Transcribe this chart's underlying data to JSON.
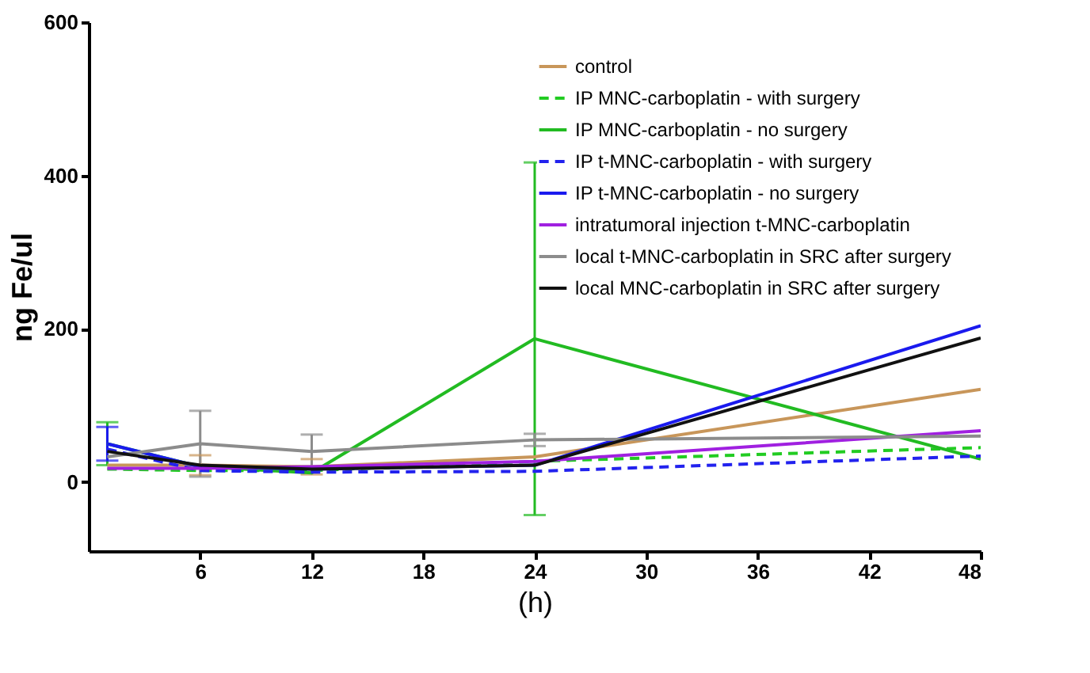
{
  "chart_data": {
    "type": "line",
    "xlabel": "(h)",
    "ylabel": "ng Fe/ul",
    "x": [
      1,
      6,
      12,
      24,
      48
    ],
    "xlim": [
      0,
      48
    ],
    "xticks": [
      6,
      12,
      18,
      24,
      30,
      36,
      42,
      48
    ],
    "ylim": [
      -90,
      600
    ],
    "yticks": [
      0,
      200,
      400,
      600
    ],
    "grid": false,
    "legend": "top right",
    "marker": "none",
    "series": [
      {
        "name": "control",
        "color": "#c8965a",
        "line_style": "solid",
        "values": [
          22,
          22,
          20,
          33,
          121
        ],
        "errors": [
          null,
          13,
          10,
          null,
          null
        ]
      },
      {
        "name": "IP MNC-carboplatin - with surgery",
        "color": "#22cc22",
        "line_style": "dashed",
        "values": [
          17,
          15,
          15,
          27,
          45
        ]
      },
      {
        "name": "IP MNC-carboplatin - no surgery",
        "color": "#22bb22",
        "line_style": "solid",
        "values": [
          50,
          20,
          12,
          187,
          30
        ],
        "errors": [
          28,
          null,
          null,
          230,
          null
        ]
      },
      {
        "name": "IP t-MNC-carboplatin - with surgery",
        "color": "#2222ee",
        "line_style": "dashed",
        "values": [
          43,
          15,
          13,
          14,
          34
        ]
      },
      {
        "name": "IP t-MNC-carboplatin - no surgery",
        "color": "#1a1aee",
        "line_style": "solid",
        "values": [
          50,
          20,
          17,
          22,
          204
        ],
        "errors": [
          22,
          null,
          null,
          null,
          null
        ]
      },
      {
        "name": "intratumoral injection t-MNC-carboplatin",
        "color": "#a020e0",
        "line_style": "solid",
        "values": [
          18,
          18,
          20,
          27,
          67
        ]
      },
      {
        "name": "local t-MNC-carboplatin in SRC after surgery",
        "color": "#8c8c8c",
        "line_style": "solid",
        "values": [
          33,
          50,
          40,
          55,
          60
        ],
        "errors": [
          null,
          43,
          22,
          8,
          null
        ]
      },
      {
        "name": "local MNC-carboplatin in SRC after surgery",
        "color": "#111111",
        "line_style": "solid",
        "values": [
          40,
          22,
          17,
          22,
          188
        ]
      }
    ]
  }
}
